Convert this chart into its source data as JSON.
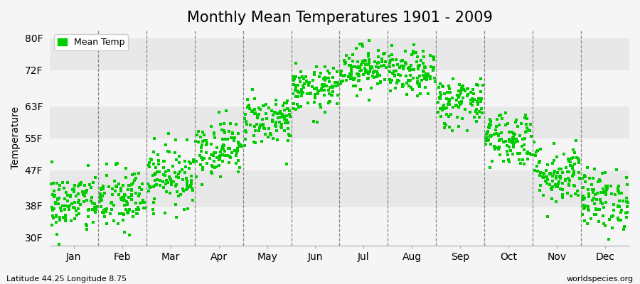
{
  "title": "Monthly Mean Temperatures 1901 - 2009",
  "ylabel": "Temperature",
  "xlabel_bottom_left": "Latitude 44.25 Longitude 8.75",
  "xlabel_bottom_right": "worldspecies.org",
  "legend_label": "Mean Temp",
  "dot_color": "#00cc00",
  "bg_color_light": "#f5f5f5",
  "bg_color_dark": "#e8e8e8",
  "yticks": [
    30,
    38,
    47,
    55,
    63,
    72,
    80
  ],
  "ytick_labels": [
    "30F",
    "38F",
    "47F",
    "55F",
    "63F",
    "72F",
    "80F"
  ],
  "ylim": [
    28,
    82
  ],
  "months": [
    "Jan",
    "Feb",
    "Mar",
    "Apr",
    "May",
    "Jun",
    "Jul",
    "Aug",
    "Sep",
    "Oct",
    "Nov",
    "Dec"
  ],
  "month_centers": [
    0.5,
    1.5,
    2.5,
    3.5,
    4.5,
    5.5,
    6.5,
    7.5,
    8.5,
    9.5,
    10.5,
    11.5
  ],
  "xlim": [
    0,
    12
  ],
  "num_years": 109,
  "monthly_mean_temps_F": [
    38.5,
    39.5,
    45.5,
    52.5,
    59.5,
    67.0,
    72.5,
    71.0,
    64.0,
    55.0,
    46.0,
    39.5
  ],
  "monthly_std_F": [
    3.8,
    4.2,
    3.8,
    3.5,
    3.2,
    2.8,
    2.8,
    2.8,
    3.2,
    3.5,
    3.8,
    3.8
  ],
  "title_fontsize": 15,
  "axis_label_fontsize": 10,
  "tick_fontsize": 10,
  "dot_size": 8,
  "seed": 42
}
